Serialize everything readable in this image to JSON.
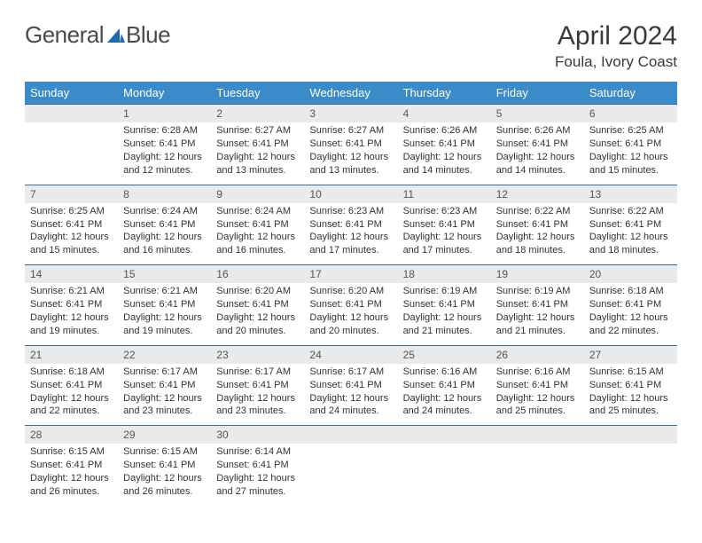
{
  "brand": {
    "part1": "General",
    "part2": "Blue"
  },
  "colors": {
    "header_bg": "#3b8bc9",
    "header_text": "#ffffff",
    "row_divider": "#2f6ea3",
    "daynum_bg": "#e9eaec",
    "body_text": "#333333",
    "logo_accent": "#1f6bb0"
  },
  "title": "April 2024",
  "location": "Foula, Ivory Coast",
  "day_headers": [
    "Sunday",
    "Monday",
    "Tuesday",
    "Wednesday",
    "Thursday",
    "Friday",
    "Saturday"
  ],
  "weeks": [
    {
      "nums": [
        "",
        "1",
        "2",
        "3",
        "4",
        "5",
        "6"
      ],
      "cells": [
        null,
        {
          "sr": "Sunrise: 6:28 AM",
          "ss": "Sunset: 6:41 PM",
          "dl": "Daylight: 12 hours and 12 minutes."
        },
        {
          "sr": "Sunrise: 6:27 AM",
          "ss": "Sunset: 6:41 PM",
          "dl": "Daylight: 12 hours and 13 minutes."
        },
        {
          "sr": "Sunrise: 6:27 AM",
          "ss": "Sunset: 6:41 PM",
          "dl": "Daylight: 12 hours and 13 minutes."
        },
        {
          "sr": "Sunrise: 6:26 AM",
          "ss": "Sunset: 6:41 PM",
          "dl": "Daylight: 12 hours and 14 minutes."
        },
        {
          "sr": "Sunrise: 6:26 AM",
          "ss": "Sunset: 6:41 PM",
          "dl": "Daylight: 12 hours and 14 minutes."
        },
        {
          "sr": "Sunrise: 6:25 AM",
          "ss": "Sunset: 6:41 PM",
          "dl": "Daylight: 12 hours and 15 minutes."
        }
      ]
    },
    {
      "nums": [
        "7",
        "8",
        "9",
        "10",
        "11",
        "12",
        "13"
      ],
      "cells": [
        {
          "sr": "Sunrise: 6:25 AM",
          "ss": "Sunset: 6:41 PM",
          "dl": "Daylight: 12 hours and 15 minutes."
        },
        {
          "sr": "Sunrise: 6:24 AM",
          "ss": "Sunset: 6:41 PM",
          "dl": "Daylight: 12 hours and 16 minutes."
        },
        {
          "sr": "Sunrise: 6:24 AM",
          "ss": "Sunset: 6:41 PM",
          "dl": "Daylight: 12 hours and 16 minutes."
        },
        {
          "sr": "Sunrise: 6:23 AM",
          "ss": "Sunset: 6:41 PM",
          "dl": "Daylight: 12 hours and 17 minutes."
        },
        {
          "sr": "Sunrise: 6:23 AM",
          "ss": "Sunset: 6:41 PM",
          "dl": "Daylight: 12 hours and 17 minutes."
        },
        {
          "sr": "Sunrise: 6:22 AM",
          "ss": "Sunset: 6:41 PM",
          "dl": "Daylight: 12 hours and 18 minutes."
        },
        {
          "sr": "Sunrise: 6:22 AM",
          "ss": "Sunset: 6:41 PM",
          "dl": "Daylight: 12 hours and 18 minutes."
        }
      ]
    },
    {
      "nums": [
        "14",
        "15",
        "16",
        "17",
        "18",
        "19",
        "20"
      ],
      "cells": [
        {
          "sr": "Sunrise: 6:21 AM",
          "ss": "Sunset: 6:41 PM",
          "dl": "Daylight: 12 hours and 19 minutes."
        },
        {
          "sr": "Sunrise: 6:21 AM",
          "ss": "Sunset: 6:41 PM",
          "dl": "Daylight: 12 hours and 19 minutes."
        },
        {
          "sr": "Sunrise: 6:20 AM",
          "ss": "Sunset: 6:41 PM",
          "dl": "Daylight: 12 hours and 20 minutes."
        },
        {
          "sr": "Sunrise: 6:20 AM",
          "ss": "Sunset: 6:41 PM",
          "dl": "Daylight: 12 hours and 20 minutes."
        },
        {
          "sr": "Sunrise: 6:19 AM",
          "ss": "Sunset: 6:41 PM",
          "dl": "Daylight: 12 hours and 21 minutes."
        },
        {
          "sr": "Sunrise: 6:19 AM",
          "ss": "Sunset: 6:41 PM",
          "dl": "Daylight: 12 hours and 21 minutes."
        },
        {
          "sr": "Sunrise: 6:18 AM",
          "ss": "Sunset: 6:41 PM",
          "dl": "Daylight: 12 hours and 22 minutes."
        }
      ]
    },
    {
      "nums": [
        "21",
        "22",
        "23",
        "24",
        "25",
        "26",
        "27"
      ],
      "cells": [
        {
          "sr": "Sunrise: 6:18 AM",
          "ss": "Sunset: 6:41 PM",
          "dl": "Daylight: 12 hours and 22 minutes."
        },
        {
          "sr": "Sunrise: 6:17 AM",
          "ss": "Sunset: 6:41 PM",
          "dl": "Daylight: 12 hours and 23 minutes."
        },
        {
          "sr": "Sunrise: 6:17 AM",
          "ss": "Sunset: 6:41 PM",
          "dl": "Daylight: 12 hours and 23 minutes."
        },
        {
          "sr": "Sunrise: 6:17 AM",
          "ss": "Sunset: 6:41 PM",
          "dl": "Daylight: 12 hours and 24 minutes."
        },
        {
          "sr": "Sunrise: 6:16 AM",
          "ss": "Sunset: 6:41 PM",
          "dl": "Daylight: 12 hours and 24 minutes."
        },
        {
          "sr": "Sunrise: 6:16 AM",
          "ss": "Sunset: 6:41 PM",
          "dl": "Daylight: 12 hours and 25 minutes."
        },
        {
          "sr": "Sunrise: 6:15 AM",
          "ss": "Sunset: 6:41 PM",
          "dl": "Daylight: 12 hours and 25 minutes."
        }
      ]
    },
    {
      "nums": [
        "28",
        "29",
        "30",
        "",
        "",
        "",
        ""
      ],
      "cells": [
        {
          "sr": "Sunrise: 6:15 AM",
          "ss": "Sunset: 6:41 PM",
          "dl": "Daylight: 12 hours and 26 minutes."
        },
        {
          "sr": "Sunrise: 6:15 AM",
          "ss": "Sunset: 6:41 PM",
          "dl": "Daylight: 12 hours and 26 minutes."
        },
        {
          "sr": "Sunrise: 6:14 AM",
          "ss": "Sunset: 6:41 PM",
          "dl": "Daylight: 12 hours and 27 minutes."
        },
        null,
        null,
        null,
        null
      ]
    }
  ]
}
